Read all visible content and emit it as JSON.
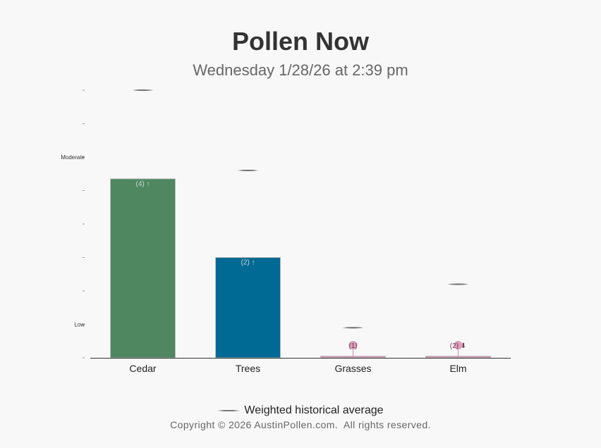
{
  "title": "Pollen Now",
  "subtitle": "Wednesday 1/28/26 at 2:39 pm",
  "legend": {
    "label": "Weighted historical average"
  },
  "copyright": "Copyright © 2026 AustinPollen.com.  All rights reserved.",
  "colors": {
    "cedar": "#4e8760",
    "trees": "#006a94",
    "grasses": "#d48fb0",
    "elm": "#d48fb0",
    "average_marker": "#777777",
    "axis": "#333333"
  },
  "chart_data": {
    "type": "bar",
    "categories": [
      "Cedar",
      "Trees",
      "Grasses",
      "Elm"
    ],
    "values": [
      5.35,
      3.0,
      0.05,
      0.05
    ],
    "historical_average": [
      8.0,
      5.6,
      0.9,
      2.2
    ],
    "value_labels": [
      "(4) ↑",
      "(2) ↑",
      "(1)",
      "(2) ⬇"
    ],
    "y_tick_labels": [
      {
        "value": 1,
        "label": "Low"
      },
      {
        "value": 6,
        "label": "Moderate"
      }
    ],
    "ylim": [
      0,
      8
    ],
    "grid": false,
    "legend_position": "bottom"
  }
}
